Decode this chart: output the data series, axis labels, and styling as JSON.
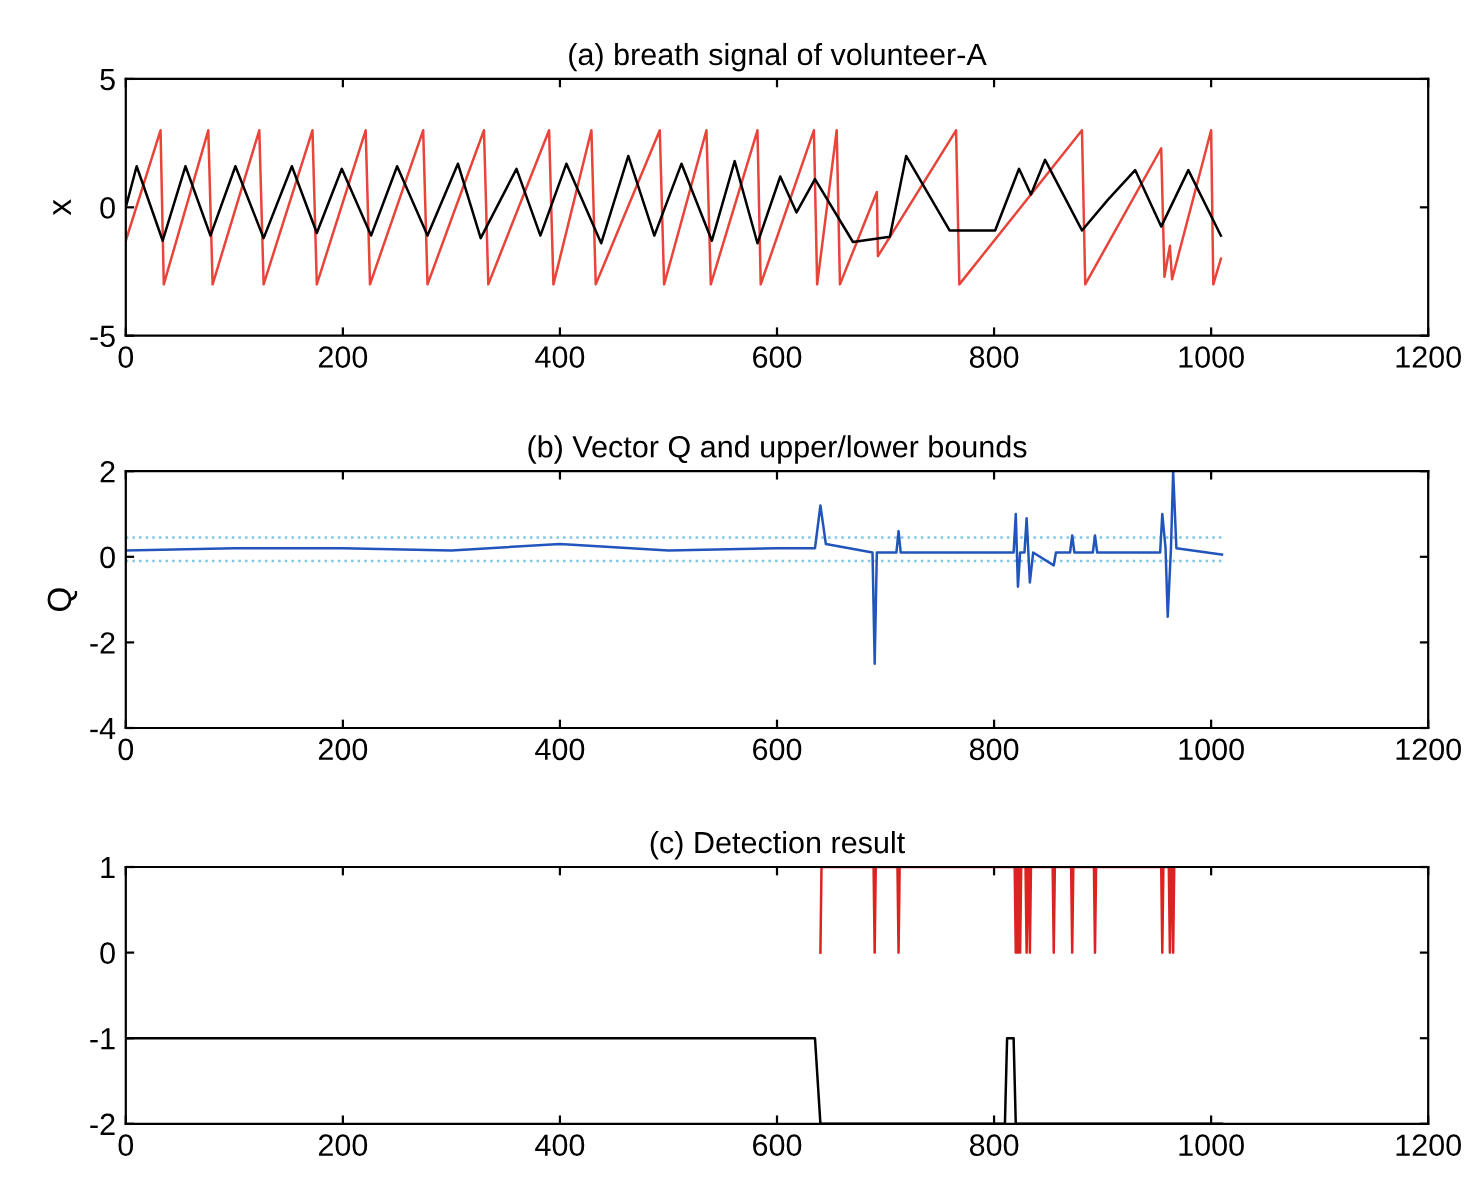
{
  "chart_data": [
    {
      "type": "line",
      "title": "(a) breath signal of volunteer-A",
      "ylabel": "x",
      "xlim": [
        0,
        1200
      ],
      "xticks": [
        0,
        200,
        400,
        600,
        800,
        1000,
        1200
      ],
      "ylim": [
        -5,
        5
      ],
      "yticks": [
        -5,
        0,
        5
      ],
      "grid": false,
      "legend": false,
      "marker": "none",
      "series": [
        {
          "color": "#e8443a",
          "line_style": "solid",
          "x": [
            0,
            32,
            35,
            76,
            80,
            123,
            127,
            172,
            176,
            221,
            225,
            274,
            278,
            330,
            334,
            390,
            394,
            429,
            433,
            492,
            496,
            535,
            539,
            582,
            585,
            634,
            637,
            655,
            658,
            692,
            693,
            765,
            768,
            881,
            884,
            954,
            957,
            962,
            964,
            1000,
            1002,
            1009
          ],
          "values": [
            -1.3,
            3.0,
            -3.0,
            3.0,
            -3.0,
            3.0,
            -3.0,
            3.0,
            -3.0,
            3.0,
            -3.0,
            3.0,
            -3.0,
            3.0,
            -3.0,
            3.0,
            -3.0,
            3.0,
            -3.0,
            3.0,
            -3.0,
            3.0,
            -3.0,
            3.0,
            -3.0,
            3.0,
            -3.0,
            3.0,
            -3.0,
            0.6,
            -1.9,
            3.0,
            -3.0,
            3.0,
            -3.0,
            2.3,
            -2.7,
            -1.5,
            -2.8,
            3.0,
            -3.0,
            -2.0
          ]
        },
        {
          "color": "#000000",
          "line_style": "solid",
          "x": [
            0,
            10,
            34,
            55,
            78,
            101,
            127,
            153,
            176,
            199,
            226,
            250,
            278,
            306,
            327,
            360,
            382,
            406,
            438,
            463,
            487,
            512,
            540,
            561,
            582,
            603,
            618,
            635,
            670,
            704,
            719,
            759,
            801,
            823,
            834,
            847,
            881,
            905,
            930,
            954,
            979,
            1009
          ],
          "values": [
            0.0,
            1.6,
            -1.3,
            1.6,
            -1.1,
            1.6,
            -1.2,
            1.6,
            -1.0,
            1.5,
            -1.1,
            1.6,
            -1.1,
            1.7,
            -1.2,
            1.5,
            -1.1,
            1.7,
            -1.4,
            2.0,
            -1.1,
            1.7,
            -1.3,
            1.8,
            -1.4,
            1.2,
            -0.2,
            1.1,
            -1.35,
            -1.15,
            2.0,
            -0.9,
            -0.9,
            1.5,
            0.5,
            1.85,
            -0.9,
            0.3,
            1.45,
            -0.75,
            1.45,
            -1.1
          ]
        }
      ]
    },
    {
      "type": "line",
      "title": "(b) Vector Q and upper/lower bounds",
      "ylabel": "Q",
      "xlim": [
        0,
        1200
      ],
      "xticks": [
        0,
        200,
        400,
        600,
        800,
        1000,
        1200
      ],
      "ylim": [
        -4,
        2
      ],
      "yticks": [
        -4,
        -2,
        0,
        2
      ],
      "grid": false,
      "legend": false,
      "marker": "none",
      "series": [
        {
          "color": "#7ec8e3",
          "line_style": "dotted",
          "x": [
            0,
            1010
          ],
          "values": [
            0.45,
            0.45
          ]
        },
        {
          "color": "#7ec8e3",
          "line_style": "dotted",
          "x": [
            0,
            1010
          ],
          "values": [
            -0.1,
            -0.1
          ]
        },
        {
          "color": "#2255bb",
          "line_style": "solid",
          "x": [
            0,
            100,
            200,
            300,
            400,
            500,
            600,
            635,
            640,
            645,
            688,
            690,
            692,
            710,
            712,
            714,
            818,
            820,
            822,
            824,
            828,
            830,
            833,
            836,
            855,
            857,
            870,
            872,
            874,
            891,
            893,
            895,
            953,
            955,
            958,
            960,
            963,
            965,
            968,
            1010
          ],
          "values": [
            0.15,
            0.2,
            0.2,
            0.15,
            0.3,
            0.15,
            0.2,
            0.2,
            1.2,
            0.3,
            0.1,
            -2.5,
            0.1,
            0.1,
            0.6,
            0.1,
            0.1,
            1.0,
            -0.7,
            0.1,
            0.1,
            0.9,
            -0.6,
            0.1,
            -0.2,
            0.1,
            0.1,
            0.5,
            0.1,
            0.1,
            0.5,
            0.1,
            0.1,
            1.0,
            0.2,
            -1.4,
            0.2,
            2.0,
            0.2,
            0.05
          ]
        }
      ]
    },
    {
      "type": "line",
      "title": "(c) Detection result",
      "xlim": [
        0,
        1200
      ],
      "xticks": [
        0,
        200,
        400,
        600,
        800,
        1000,
        1200
      ],
      "ylim": [
        -2,
        1
      ],
      "yticks": [
        -2,
        -1,
        0,
        1
      ],
      "grid": false,
      "legend": false,
      "marker": "none",
      "series": [
        {
          "color": "#000000",
          "line_style": "solid",
          "x": [
            0,
            635,
            640,
            810,
            812,
            818,
            820,
            1010
          ],
          "values": [
            -1,
            -1,
            -2,
            -2,
            -1,
            -1,
            -2,
            -2
          ]
        },
        {
          "color": "#dd2222",
          "line_style": "solid",
          "x": [
            640,
            641,
            689,
            690,
            691,
            711,
            712,
            713,
            819,
            820,
            821,
            822,
            823,
            824,
            825,
            826,
            829,
            830,
            831,
            832,
            833,
            834,
            854,
            855,
            856,
            871,
            872,
            873,
            892,
            893,
            894,
            954,
            955,
            956,
            961,
            962,
            963,
            964,
            965,
            966
          ],
          "values": [
            0,
            1,
            1,
            0,
            1,
            1,
            0,
            1,
            1,
            0,
            1,
            0,
            1,
            0,
            1,
            1,
            1,
            0,
            1,
            1,
            0,
            1,
            1,
            0,
            1,
            1,
            0,
            1,
            1,
            0,
            1,
            1,
            0,
            1,
            1,
            0,
            1,
            1,
            0,
            1
          ]
        }
      ]
    }
  ]
}
